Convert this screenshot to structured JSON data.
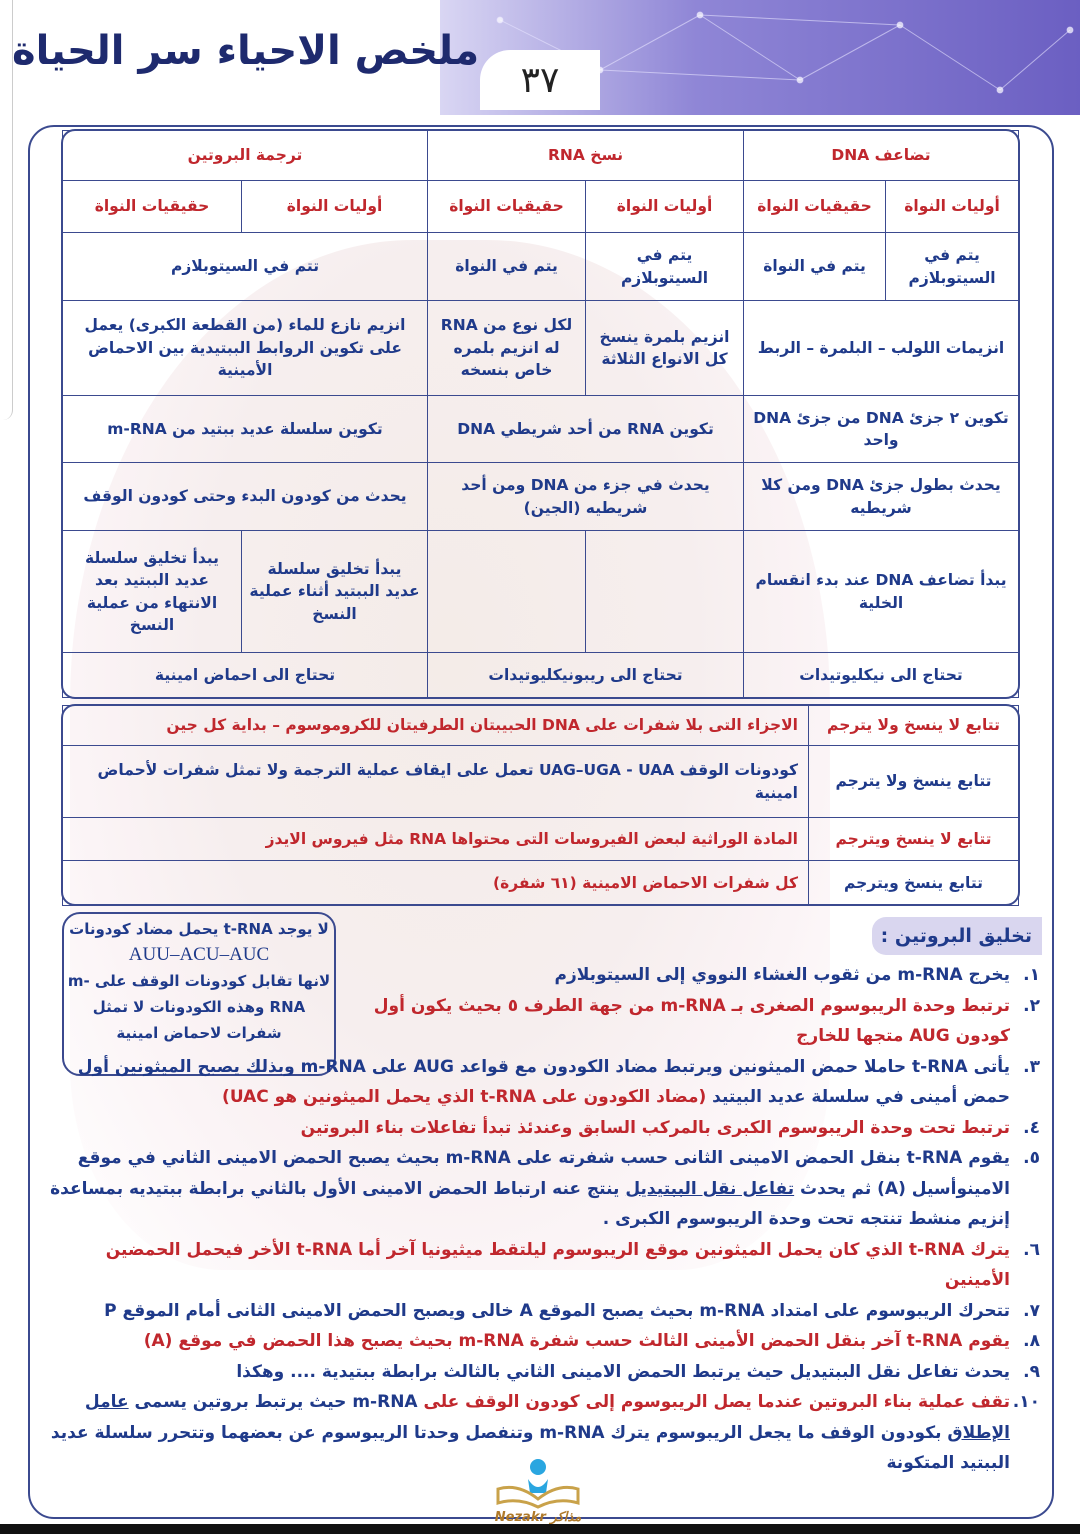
{
  "header": {
    "title": "ملخص الاحياء سر الحياة",
    "page_number": "٣٧"
  },
  "table1": {
    "groups": [
      {
        "label": "تضاعف DNA",
        "color": "#c0272d"
      },
      {
        "label": "نسخ RNA",
        "color": "#c0272d"
      },
      {
        "label": "ترجمة البروتين",
        "color": "#c0272d"
      }
    ],
    "subheaders": [
      "أوليات النواة",
      "حقيقيات النواة",
      "أوليات النواة",
      "حقيقيات النواة",
      "أوليات النواة",
      "حقيقيات النواة"
    ],
    "rows": {
      "location": [
        "يتم في السيتوبلازم",
        "يتم في النواة",
        "يتم في السيتوبلازم",
        "يتم في النواة",
        "تتم في السيتوبلازم"
      ],
      "enzymes": [
        "انزيمات اللولب – البلمرة – الربط",
        "انزيم بلمرة ينسخ كل الانواع الثلاثة",
        "لكل نوع من RNA له انزيم بلمره خاص بنسخه",
        "انزيم نازع للماء (من القطعة الكبرى) يعمل على تكوين الروابط الببتيدية بين الاحماض الأمينية"
      ],
      "product": [
        "تكوين ٢ جزئ DNA من جزئ DNA واحد",
        "تكوين RNA من أحد شريطي DNA",
        "تكوين سلسلة عديد ببتيد من m-RNA"
      ],
      "extent": [
        "يحدث بطول جزئ DNA ومن كلا شريطيه",
        "يحدث في جزء من DNA ومن أحد شريطيه (الجين)",
        "يحدث من كودون البدء وحتى كودون الوقف"
      ],
      "timing": [
        "يبدأ تضاعف DNA عند بدء انقسام الخلية",
        "",
        "",
        "يبدأ تخليق سلسلة عديد الببتيد أثناء عملية النسخ",
        "يبدأ تخليق سلسلة عديد الببتيد بعد الانتهاء من عملية النسخ"
      ],
      "needs": [
        "تحتاج الى نيكليوتيدات",
        "تحتاج الى ريبونيكليوتيدات",
        "تحتاج الى احماض امينية"
      ]
    }
  },
  "table2": {
    "rows": [
      {
        "label": "تتابع لا ينسخ ولا يترجم",
        "desc": "الاجزاء التى بلا شفرات على DNA الحبيبتان الطرفيتان للكروموسوم – بداية كل جين",
        "color": "#c0272d"
      },
      {
        "label": "تتابع ينسخ ولا يترجم",
        "desc": "كودونات الوقف UAG–UGA - UAA تعمل على ايقاف عملية الترجمة ولا تمثل شفرات لأحماض امينية",
        "color": "#1f3a8a"
      },
      {
        "label": "تتابع لا ينسخ ويترجم",
        "desc": "المادة الوراثية لبعض الفيروسات التى محتواها RNA مثل فيروس الايدز",
        "color": "#c0272d"
      },
      {
        "label": "تتابع ينسخ ويترجم",
        "desc": "كل شفرات الاحماض الامينية (٦١ شفرة)",
        "color": "#c0272d"
      }
    ]
  },
  "note": {
    "line1": "لا يوجد t-RNA يحمل مضاد كودونات",
    "codons": "AUU–ACU–AUC",
    "line2": "لانها تقابل كودونات الوقف على m-RNA وهذه الكودونات لا تمثل شفرات لاحماض امينية"
  },
  "section": {
    "heading": "تخليق البروتين :",
    "items": [
      {
        "num": "١.",
        "segments": [
          {
            "text": "يخرج m-RNA من ثقوب الغشاء النووي إلى السيتوبلازم",
            "color": "blue"
          }
        ]
      },
      {
        "num": "٢.",
        "segments": [
          {
            "text": "ترتبط وحدة الريبوسوم الصغرى بـ m-RNA من جهة الطرف ٥ بحيث يكون أول كودون AUG متجها للخارج",
            "color": "red"
          }
        ]
      },
      {
        "num": "٣.",
        "segments": [
          {
            "text": "يأتى t-RNA حاملا حمض الميثونين ويرتبط مضاد الكودون مع قواعد AUG على m-RNA وبذلك يصبح الميثونين أول حمض أمينى في سلسلة عديد البيتيد",
            "color": "blue"
          },
          {
            "text": " (مضاد الكودون على t-RNA الذي يحمل الميثونين هو UAC)",
            "color": "red"
          }
        ]
      },
      {
        "num": "٤.",
        "segments": [
          {
            "text": "ترتبط تحت وحدة الريبوسوم الكبرى بالمركب السابق وعندئذ تبدأ تفاعلات بناء البروتين",
            "color": "red"
          }
        ]
      },
      {
        "num": "٥.",
        "segments": [
          {
            "text": "يقوم t-RNA بنقل الحمض الامينى الثانى حسب شفرته على m-RNA بحيث يصبح الحمض الامينى الثاني في موقع الامينوأسيل (A) ثم يحدث ",
            "color": "blue"
          },
          {
            "text": "تفاعل نقل الببتيديل",
            "color": "blue",
            "underline": true
          },
          {
            "text": " ينتج عنه ارتباط الحمض الامينى الأول بالثاني برابطة ببتيديه بمساعدة إنزيم منشط تنتجه تحت وحدة الريبوسوم الكبرى .",
            "color": "blue"
          }
        ]
      },
      {
        "num": "٦.",
        "segments": [
          {
            "text": "يترك t-RNA الذي كان يحمل الميثونين موقع الريبوسوم ليلتقط ميثيونيا آخر أما t-RNA الأخر فيحمل الحمضين الأمينين",
            "color": "red"
          }
        ]
      },
      {
        "num": "٧.",
        "segments": [
          {
            "text": "تتحرك الريبوسوم على امتداد m-RNA بحيث يصبح الموقع A خالى ويصبح الحمض الامينى الثانى أمام الموقع P",
            "color": "blue"
          }
        ]
      },
      {
        "num": "٨.",
        "segments": [
          {
            "text": "يقوم t-RNA آخر بنقل الحمض الأمينى الثالث حسب شفرة m-RNA بحيث يصبح هذا الحمض في موقع (A)",
            "color": "red"
          }
        ]
      },
      {
        "num": "٩.",
        "segments": [
          {
            "text": "يحدث تفاعل نقل الببتيديل حيث يرتبط الحمض الامينى الثاني بالثالث برابطة ببتيدية .... وهكذا",
            "color": "blue"
          }
        ]
      },
      {
        "num": "١٠.",
        "segments": [
          {
            "text": "تقف عملية بناء البروتين عندما يصل الريبوسوم إلى كودون الوقف على ",
            "color": "red"
          },
          {
            "text": "m-RNA حيث يرتبط بروتين يسمى ",
            "color": "blue"
          },
          {
            "text": "عامل الإطلاق",
            "color": "blue",
            "underline": true
          },
          {
            "text": " بكودون الوقف ما يجعل الريبوسوم يترك m-RNA وتنفصل وحدتا الريبوسوم عن بعضهما وتتحرر سلسلة عديد الببتيد المتكونة",
            "color": "blue"
          }
        ]
      }
    ]
  },
  "logo": {
    "text": "Nezakr مذاكر"
  },
  "colors": {
    "red": "#c0272d",
    "blue": "#1f3a8a",
    "border": "#3b4a8f",
    "banner": "#6b5fc2"
  }
}
